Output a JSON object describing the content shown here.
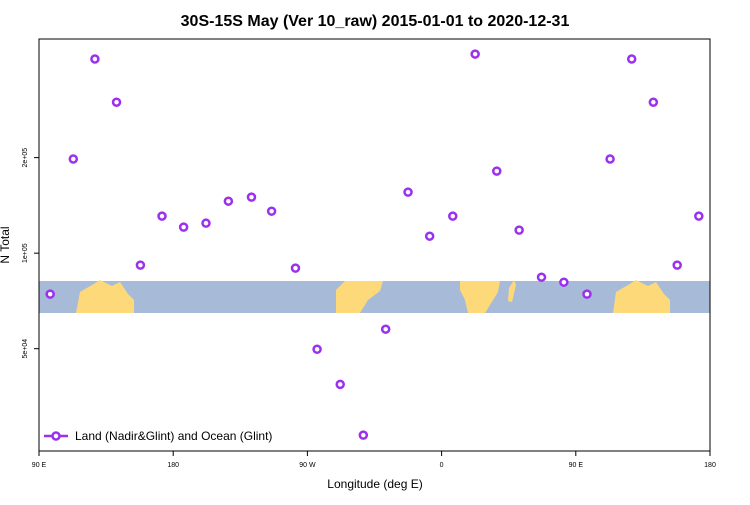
{
  "chart_data": {
    "type": "scatter",
    "title": "30S-15S May (Ver 10_raw)   2015-01-01 to 2020-12-31",
    "xlabel": "Longitude (deg E)",
    "ylabel": "N Total",
    "xlim": [
      90,
      540
    ],
    "xticks": [
      {
        "value": 90,
        "label": "90 E"
      },
      {
        "value": 180,
        "label": "180"
      },
      {
        "value": 270,
        "label": "90 W"
      },
      {
        "value": 360,
        "label": "0"
      },
      {
        "value": 450,
        "label": "90 E"
      },
      {
        "value": 540,
        "label": "180"
      }
    ],
    "ylim": [
      23800,
      473000
    ],
    "yticks": [
      {
        "value": 50000,
        "label": "5e+04"
      },
      {
        "value": 100000,
        "label": "1e+05"
      },
      {
        "value": 200000,
        "label": "2e+05"
      }
    ],
    "log_y": true,
    "legend": "bottom-left",
    "series": [
      {
        "name": "Land (Nadir&Glint) and Ocean (Glint)",
        "color": "#9b30ee",
        "x": [
          97.5,
          113,
          127.5,
          142,
          158,
          172.5,
          187,
          202,
          217,
          232.5,
          246,
          262,
          276.5,
          292,
          307.5,
          322.5,
          337.5,
          352,
          367.5,
          382.5,
          397,
          412,
          427,
          442,
          457.5,
          473,
          487.5,
          502,
          518,
          532.5
        ],
        "values": [
          74300,
          198000,
          409000,
          299000,
          91700,
          130800,
          120800,
          124300,
          145800,
          150200,
          135600,
          89700,
          49800,
          38600,
          26700,
          57600,
          155700,
          113100,
          130800,
          424000,
          181400,
          118200,
          84000,
          81000,
          74300,
          198000,
          409000,
          299000,
          91700,
          130800
        ]
      }
    ]
  }
}
